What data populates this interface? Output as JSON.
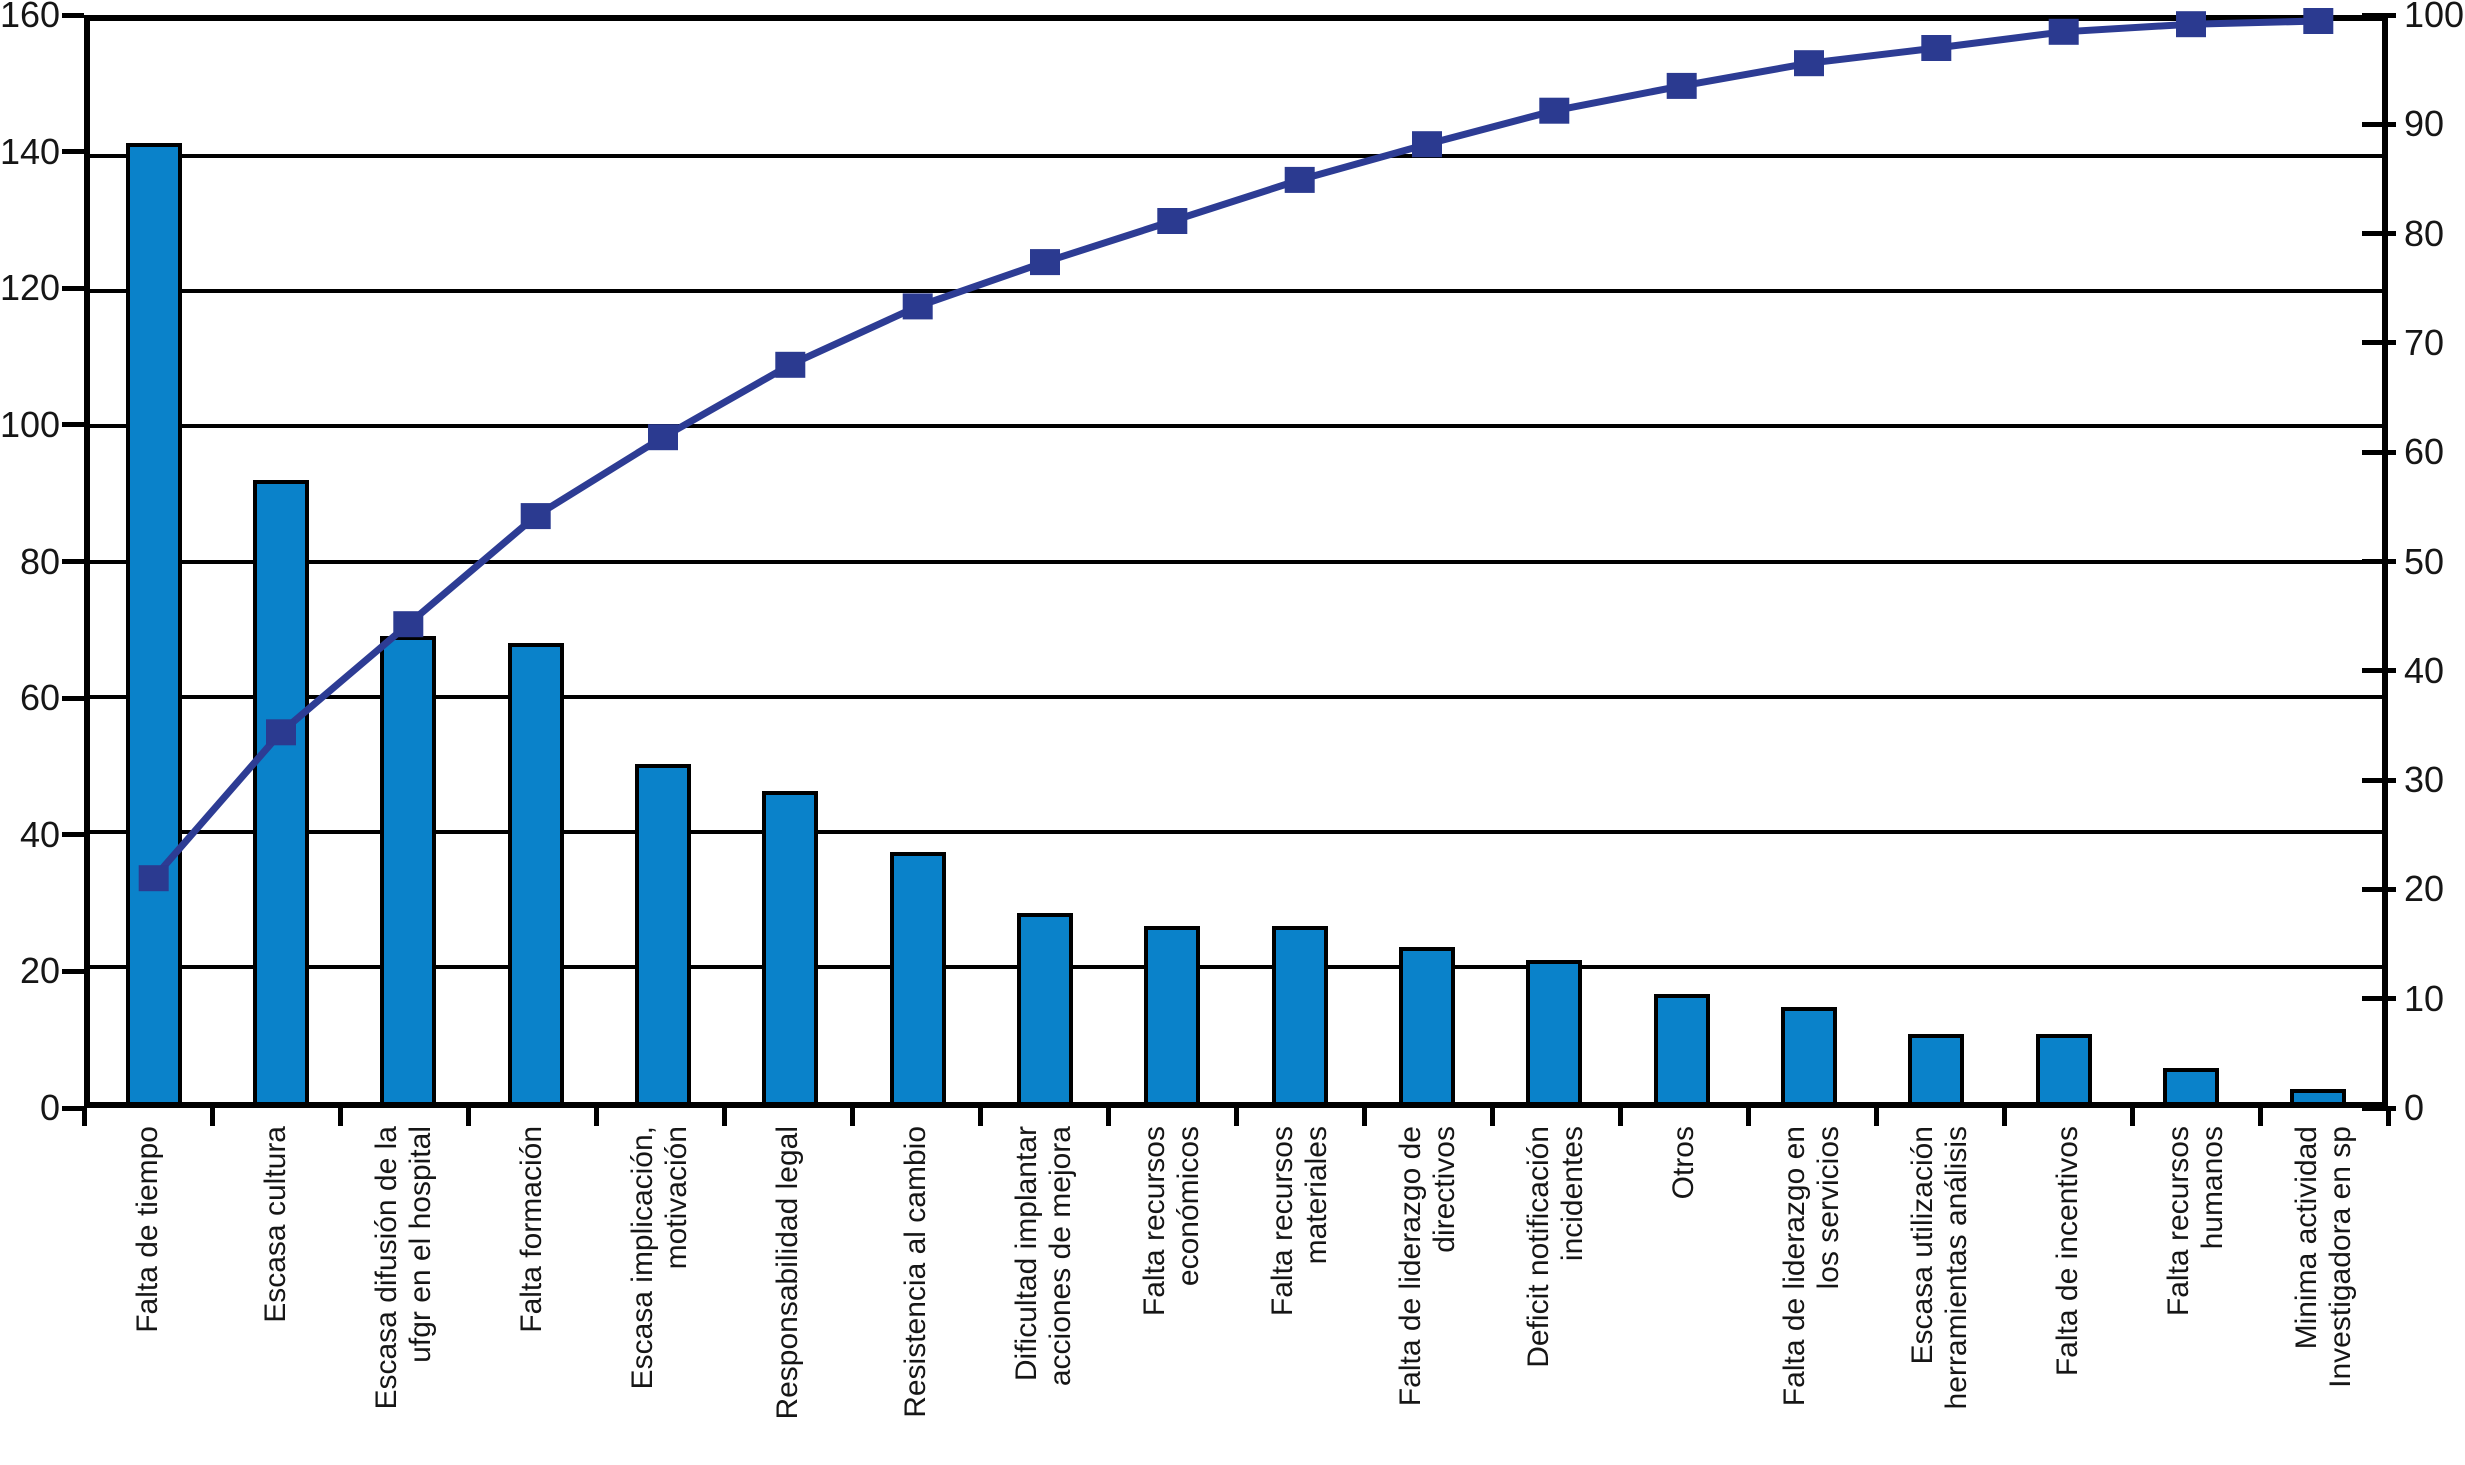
{
  "chart_data": {
    "type": "bar",
    "subtype": "pareto-with-cumulative-line",
    "title": "",
    "legend": "none",
    "grid": "horizontal lines every 20 left-axis units",
    "categories": [
      [
        "Falta de tiempo"
      ],
      [
        "Escasa cultura"
      ],
      [
        "Escasa difusión de la",
        "ufgr en el hospital"
      ],
      [
        "Falta formación"
      ],
      [
        "Escasa implicación,",
        "motivación"
      ],
      [
        "Responsabilidad legal"
      ],
      [
        "Resistencia al cambio"
      ],
      [
        "Dificultad implantar",
        "acciones de mejora"
      ],
      [
        "Falta recursos",
        "económicos"
      ],
      [
        "Falta recursos",
        "materiales"
      ],
      [
        "Falta de liderazgo de",
        "directivos"
      ],
      [
        "Deficit notificación",
        "incidentes"
      ],
      [
        "Otros"
      ],
      [
        "Falta de liderazgo en",
        "los servicios"
      ],
      [
        "Escasa utilización",
        "herramientas análisis"
      ],
      [
        "Falta de incentivos"
      ],
      [
        "Falta recursos",
        "humanos"
      ],
      [
        "Minima actividad",
        "Investigadora en sp"
      ]
    ],
    "bars": {
      "axis": "left",
      "values": [
        142,
        92,
        69,
        68,
        50,
        46,
        37,
        28,
        26,
        26,
        23,
        21,
        16,
        14,
        10,
        10,
        5,
        2
      ]
    },
    "cumulative_line": {
      "axis": "right",
      "values_pct": [
        20.7,
        34.2,
        44.2,
        54.2,
        61.5,
        68.2,
        73.6,
        77.7,
        81.5,
        85.3,
        88.6,
        91.7,
        94.0,
        96.1,
        97.5,
        99.0,
        99.7,
        100.0
      ],
      "marker": "square"
    },
    "left_axis": {
      "min": 0,
      "max": 160,
      "step": 20,
      "tick_labels": [
        "160",
        "140",
        "120",
        "100",
        "80",
        "60",
        "40",
        "20",
        "0"
      ]
    },
    "right_axis": {
      "min": 0,
      "max": 100,
      "step": 10,
      "tick_labels": [
        "100",
        "90",
        "80",
        "70",
        "60",
        "50",
        "40",
        "30",
        "20",
        "10",
        "0"
      ]
    },
    "colors": {
      "bar_fill": "#0a82ca",
      "bar_stroke": "#000000",
      "line": "#2d3c94",
      "marker_fill": "#2b3a90",
      "grid": "#000000",
      "text": "#161616",
      "background": "#ffffff"
    }
  }
}
